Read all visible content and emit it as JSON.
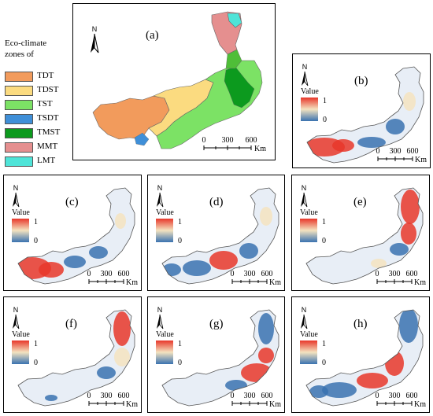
{
  "legend": {
    "title_line1": "Eco-climate",
    "title_line2": "zones of",
    "items": [
      {
        "code": "TDT",
        "color": "#F29B5C"
      },
      {
        "code": "TDST",
        "color": "#FBDB80"
      },
      {
        "code": "TST",
        "color": "#7CE265"
      },
      {
        "code": "TSDT",
        "color": "#3F8FD8"
      },
      {
        "code": "TMST",
        "color": "#0C9A1E"
      },
      {
        "code": "MMT",
        "color": "#E58F8F"
      },
      {
        "code": "LMT",
        "color": "#4FE4D8"
      }
    ]
  },
  "panels": [
    {
      "label": "(a)",
      "north": "N"
    },
    {
      "label": "(b)",
      "north": "N",
      "value_title": "Value",
      "value_max": "1",
      "value_min": "0"
    },
    {
      "label": "(c)",
      "north": "N",
      "value_title": "Value",
      "value_max": "1",
      "value_min": "0"
    },
    {
      "label": "(d)",
      "north": "N",
      "value_title": "Value",
      "value_max": "1",
      "value_min": "0"
    },
    {
      "label": "(e)",
      "north": "N",
      "value_title": "Value",
      "value_max": "1",
      "value_min": "0"
    },
    {
      "label": "(f)",
      "north": "N",
      "value_title": "Value",
      "value_max": "1",
      "value_min": "0"
    },
    {
      "label": "(g)",
      "north": "N",
      "value_title": "Value",
      "value_max": "1",
      "value_min": "0"
    },
    {
      "label": "(h)",
      "north": "N",
      "value_title": "Value",
      "value_max": "1",
      "value_min": "0"
    }
  ],
  "scalebar": {
    "t0": "0",
    "t1": "300",
    "t2": "600",
    "unit": "Km"
  },
  "colors": {
    "high": "#E8372A",
    "mid": "#F4E3C0",
    "low": "#3A72B0",
    "outline": "#555555"
  }
}
